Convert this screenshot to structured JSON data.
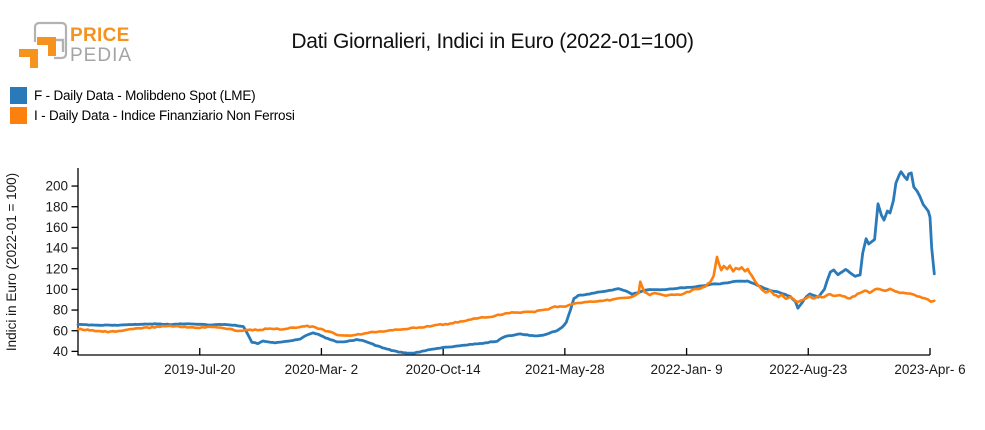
{
  "logo": {
    "brand_top": "PRICE",
    "brand_bottom": "PEDIA",
    "orange": "#F6921E",
    "gray": "#A4A4A4"
  },
  "header": {
    "title": "Dati Giornalieri, Indici in Euro (2022-01=100)"
  },
  "legend": [
    {
      "label": "F - Daily Data - Molibdeno Spot (LME)",
      "color": "#2A7AB9"
    },
    {
      "label": "I - Daily Data - Indice Finanziario Non Ferrosi",
      "color": "#FD7F0E"
    }
  ],
  "chart_data": {
    "type": "line",
    "title": "Dati Giornalieri, Indici in Euro (2022-01=100)",
    "xlabel": "",
    "ylabel": "Indici in Euro (2022-01 = 100)",
    "grid": false,
    "legend_position": "top-left",
    "y_ticks": [
      40,
      60,
      80,
      100,
      120,
      140,
      160,
      180,
      200
    ],
    "ylim": [
      36.5,
      216.5
    ],
    "x_tick_labels": [
      "2019-Jul-20",
      "2020-Mar- 2",
      "2020-Oct-14",
      "2021-May-28",
      "2022-Jan- 9",
      "2022-Aug-23",
      "2023-Apr- 6"
    ],
    "x_tick_positions": [
      0.1429,
      0.2857,
      0.4286,
      0.5714,
      0.7143,
      0.8571,
      1.0
    ],
    "series": [
      {
        "name": "F - Daily Data - Molibdeno Spot (LME)",
        "color": "#2A7AB9",
        "points": [
          [
            0,
            66
          ],
          [
            0.013,
            65.6
          ],
          [
            0.026,
            65.4
          ],
          [
            0.049,
            65.3
          ],
          [
            0.061,
            65.8
          ],
          [
            0.073,
            66.2
          ],
          [
            0.09,
            66.6
          ],
          [
            0.108,
            66.1
          ],
          [
            0.126,
            66.8
          ],
          [
            0.143,
            66.2
          ],
          [
            0.155,
            65.6
          ],
          [
            0.172,
            66
          ],
          [
            0.184,
            65.2
          ],
          [
            0.194,
            64
          ],
          [
            0.199,
            57
          ],
          [
            0.204,
            49
          ],
          [
            0.211,
            47.5
          ],
          [
            0.217,
            50
          ],
          [
            0.223,
            49
          ],
          [
            0.231,
            48.5
          ],
          [
            0.241,
            49.5
          ],
          [
            0.249,
            50
          ],
          [
            0.261,
            52
          ],
          [
            0.269,
            56
          ],
          [
            0.276,
            57.8
          ],
          [
            0.282,
            56.5
          ],
          [
            0.288,
            54
          ],
          [
            0.296,
            51.5
          ],
          [
            0.304,
            49
          ],
          [
            0.313,
            49.5
          ],
          [
            0.322,
            50.5
          ],
          [
            0.327,
            51.5
          ],
          [
            0.334,
            50.5
          ],
          [
            0.343,
            48
          ],
          [
            0.352,
            45
          ],
          [
            0.36,
            43
          ],
          [
            0.368,
            41
          ],
          [
            0.376,
            39.5
          ],
          [
            0.384,
            38.5
          ],
          [
            0.392,
            38
          ],
          [
            0.401,
            39.5
          ],
          [
            0.411,
            41.5
          ],
          [
            0.419,
            42.5
          ],
          [
            0.428,
            43.5
          ],
          [
            0.439,
            44.5
          ],
          [
            0.448,
            45.5
          ],
          [
            0.46,
            46.5
          ],
          [
            0.472,
            47.5
          ],
          [
            0.484,
            49
          ],
          [
            0.492,
            50
          ],
          [
            0.501,
            54.5
          ],
          [
            0.509,
            55.5
          ],
          [
            0.519,
            57
          ],
          [
            0.527,
            56
          ],
          [
            0.536,
            55
          ],
          [
            0.546,
            55.5
          ],
          [
            0.554,
            58
          ],
          [
            0.562,
            60
          ],
          [
            0.568,
            63
          ],
          [
            0.573,
            68
          ],
          [
            0.578,
            80
          ],
          [
            0.582,
            91
          ],
          [
            0.587,
            94
          ],
          [
            0.595,
            95
          ],
          [
            0.603,
            96
          ],
          [
            0.613,
            97.5
          ],
          [
            0.624,
            99
          ],
          [
            0.634,
            100.5
          ],
          [
            0.642,
            99
          ],
          [
            0.65,
            95.5
          ],
          [
            0.657,
            97
          ],
          [
            0.666,
            99.5
          ],
          [
            0.674,
            100
          ],
          [
            0.683,
            99.5
          ],
          [
            0.693,
            100
          ],
          [
            0.701,
            101
          ],
          [
            0.709,
            101.5
          ],
          [
            0.718,
            102
          ],
          [
            0.728,
            103
          ],
          [
            0.736,
            104
          ],
          [
            0.745,
            105
          ],
          [
            0.754,
            105.5
          ],
          [
            0.763,
            106.5
          ],
          [
            0.771,
            107.5
          ],
          [
            0.779,
            108
          ],
          [
            0.786,
            108
          ],
          [
            0.795,
            105
          ],
          [
            0.803,
            102
          ],
          [
            0.812,
            99
          ],
          [
            0.822,
            97.5
          ],
          [
            0.83,
            95
          ],
          [
            0.836,
            93
          ],
          [
            0.842,
            88
          ],
          [
            0.845,
            82
          ],
          [
            0.85,
            87
          ],
          [
            0.855,
            93
          ],
          [
            0.859,
            95.5
          ],
          [
            0.865,
            94
          ],
          [
            0.869,
            92.5
          ],
          [
            0.873,
            97
          ],
          [
            0.876,
            100
          ],
          [
            0.879,
            108
          ],
          [
            0.883,
            117
          ],
          [
            0.887,
            119
          ],
          [
            0.892,
            114
          ],
          [
            0.897,
            117
          ],
          [
            0.901,
            119.5
          ],
          [
            0.906,
            116
          ],
          [
            0.912,
            112.5
          ],
          [
            0.918,
            114
          ],
          [
            0.921,
            135
          ],
          [
            0.925,
            149
          ],
          [
            0.928,
            144
          ],
          [
            0.932,
            146.5
          ],
          [
            0.935,
            148
          ],
          [
            0.939,
            183
          ],
          [
            0.943,
            172
          ],
          [
            0.946,
            167
          ],
          [
            0.95,
            176
          ],
          [
            0.953,
            174
          ],
          [
            0.957,
            186
          ],
          [
            0.96,
            203
          ],
          [
            0.964,
            211
          ],
          [
            0.966,
            214
          ],
          [
            0.97,
            209
          ],
          [
            0.973,
            206.5
          ],
          [
            0.975,
            212
          ],
          [
            0.978,
            212.5
          ],
          [
            0.981,
            199
          ],
          [
            0.985,
            195
          ],
          [
            0.988,
            190
          ],
          [
            0.992,
            182
          ],
          [
            0.995,
            179
          ],
          [
            0.998,
            175.5
          ],
          [
            1,
            170
          ],
          [
            1.002,
            140
          ],
          [
            1.005,
            115
          ]
        ]
      },
      {
        "name": "I - Daily Data - Indice Finanziario Non Ferrosi",
        "color": "#FD7F0E",
        "points": [
          [
            0,
            61.5
          ],
          [
            0.014,
            60.5
          ],
          [
            0.026,
            59.5
          ],
          [
            0.035,
            58.8
          ],
          [
            0.047,
            59.5
          ],
          [
            0.061,
            61
          ],
          [
            0.075,
            62.5
          ],
          [
            0.09,
            63.5
          ],
          [
            0.102,
            64.5
          ],
          [
            0.117,
            64
          ],
          [
            0.131,
            63.5
          ],
          [
            0.146,
            63
          ],
          [
            0.157,
            63.5
          ],
          [
            0.169,
            62.5
          ],
          [
            0.181,
            61
          ],
          [
            0.19,
            60
          ],
          [
            0.202,
            60.5
          ],
          [
            0.214,
            61
          ],
          [
            0.225,
            62
          ],
          [
            0.237,
            61.5
          ],
          [
            0.249,
            62.5
          ],
          [
            0.258,
            63.5
          ],
          [
            0.266,
            64.5
          ],
          [
            0.275,
            64
          ],
          [
            0.282,
            62
          ],
          [
            0.288,
            60.5
          ],
          [
            0.296,
            58.5
          ],
          [
            0.304,
            56.5
          ],
          [
            0.311,
            55
          ],
          [
            0.319,
            55.5
          ],
          [
            0.329,
            56.5
          ],
          [
            0.337,
            57.5
          ],
          [
            0.346,
            58.5
          ],
          [
            0.357,
            59.5
          ],
          [
            0.366,
            60.5
          ],
          [
            0.376,
            61
          ],
          [
            0.385,
            62
          ],
          [
            0.394,
            62.5
          ],
          [
            0.404,
            63.5
          ],
          [
            0.413,
            64.5
          ],
          [
            0.423,
            65.5
          ],
          [
            0.428,
            66
          ],
          [
            0.437,
            67
          ],
          [
            0.446,
            68.5
          ],
          [
            0.455,
            70
          ],
          [
            0.465,
            71.5
          ],
          [
            0.474,
            73
          ],
          [
            0.484,
            73.5
          ],
          [
            0.493,
            75
          ],
          [
            0.501,
            76.5
          ],
          [
            0.509,
            78
          ],
          [
            0.516,
            77.5
          ],
          [
            0.525,
            78.5
          ],
          [
            0.533,
            78
          ],
          [
            0.542,
            79.5
          ],
          [
            0.552,
            81
          ],
          [
            0.56,
            83
          ],
          [
            0.568,
            83.5
          ],
          [
            0.573,
            84
          ],
          [
            0.583,
            86
          ],
          [
            0.591,
            87
          ],
          [
            0.601,
            88
          ],
          [
            0.61,
            88.5
          ],
          [
            0.618,
            89.5
          ],
          [
            0.627,
            90
          ],
          [
            0.636,
            91
          ],
          [
            0.645,
            92
          ],
          [
            0.654,
            94
          ],
          [
            0.658,
            96
          ],
          [
            0.66,
            108
          ],
          [
            0.662,
            103
          ],
          [
            0.665,
            97
          ],
          [
            0.671,
            95
          ],
          [
            0.677,
            96
          ],
          [
            0.683,
            95
          ],
          [
            0.69,
            93.5
          ],
          [
            0.697,
            95
          ],
          [
            0.704,
            94.5
          ],
          [
            0.711,
            96
          ],
          [
            0.718,
            98
          ],
          [
            0.724,
            100
          ],
          [
            0.73,
            101
          ],
          [
            0.736,
            103
          ],
          [
            0.742,
            107
          ],
          [
            0.746,
            113
          ],
          [
            0.75,
            132
          ],
          [
            0.752,
            125
          ],
          [
            0.755,
            118
          ],
          [
            0.758,
            123
          ],
          [
            0.762,
            120
          ],
          [
            0.765,
            123.5
          ],
          [
            0.769,
            117
          ],
          [
            0.772,
            121
          ],
          [
            0.776,
            119
          ],
          [
            0.779,
            121.5
          ],
          [
            0.783,
            118
          ],
          [
            0.786,
            119.5
          ],
          [
            0.791,
            113
          ],
          [
            0.795,
            108
          ],
          [
            0.798,
            104
          ],
          [
            0.803,
            100
          ],
          [
            0.807,
            97
          ],
          [
            0.812,
            99
          ],
          [
            0.817,
            95
          ],
          [
            0.822,
            93
          ],
          [
            0.826,
            94.5
          ],
          [
            0.831,
            91
          ],
          [
            0.836,
            92.5
          ],
          [
            0.84,
            90
          ],
          [
            0.845,
            88
          ],
          [
            0.85,
            90
          ],
          [
            0.854,
            91.5
          ],
          [
            0.859,
            93
          ],
          [
            0.864,
            91
          ],
          [
            0.868,
            93.5
          ],
          [
            0.873,
            92
          ],
          [
            0.878,
            94
          ],
          [
            0.883,
            95.5
          ],
          [
            0.888,
            93.5
          ],
          [
            0.894,
            95
          ],
          [
            0.9,
            92.5
          ],
          [
            0.906,
            91.5
          ],
          [
            0.912,
            94
          ],
          [
            0.918,
            96.5
          ],
          [
            0.924,
            98.5
          ],
          [
            0.929,
            97
          ],
          [
            0.935,
            99.5
          ],
          [
            0.941,
            100.5
          ],
          [
            0.947,
            99
          ],
          [
            0.953,
            100
          ],
          [
            0.959,
            98.5
          ],
          [
            0.965,
            97
          ],
          [
            0.971,
            96.5
          ],
          [
            0.977,
            96
          ],
          [
            0.982,
            94.5
          ],
          [
            0.988,
            92.5
          ],
          [
            0.994,
            91
          ],
          [
            0.998,
            90
          ],
          [
            1.001,
            88.5
          ],
          [
            1.005,
            89
          ]
        ]
      }
    ]
  }
}
